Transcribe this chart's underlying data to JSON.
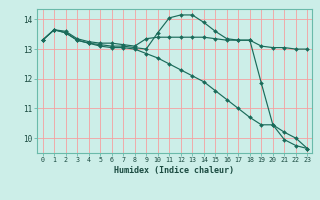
{
  "xlabel": "Humidex (Indice chaleur)",
  "bg_color": "#cceee8",
  "grid_color": "#f5a0a0",
  "line_color": "#1a6b5a",
  "xlim": [
    -0.5,
    23.4
  ],
  "ylim": [
    9.5,
    14.35
  ],
  "yticks": [
    10,
    11,
    12,
    13,
    14
  ],
  "xticks": [
    0,
    1,
    2,
    3,
    4,
    5,
    6,
    7,
    8,
    9,
    10,
    11,
    12,
    13,
    14,
    15,
    16,
    17,
    18,
    19,
    20,
    21,
    22,
    23
  ],
  "lines": [
    {
      "x": [
        0,
        1,
        2,
        3,
        4,
        5,
        6,
        7,
        8,
        9,
        10,
        11,
        12,
        13,
        14,
        15,
        16,
        17,
        18,
        19,
        20,
        21,
        22,
        23
      ],
      "y": [
        13.3,
        13.65,
        13.6,
        13.35,
        13.25,
        13.2,
        13.2,
        13.15,
        13.1,
        13.35,
        13.4,
        13.4,
        13.4,
        13.4,
        13.4,
        13.35,
        13.3,
        13.3,
        13.3,
        13.1,
        13.05,
        13.05,
        13.0,
        13.0
      ]
    },
    {
      "x": [
        0,
        1,
        2,
        3,
        4,
        5,
        6,
        7,
        8,
        9,
        10,
        11,
        12,
        13,
        14,
        15,
        16,
        17,
        18,
        19,
        20,
        21,
        22,
        23
      ],
      "y": [
        13.3,
        13.65,
        13.55,
        13.3,
        13.2,
        13.15,
        13.1,
        13.1,
        13.05,
        13.0,
        13.55,
        14.05,
        14.15,
        14.15,
        13.9,
        13.6,
        13.35,
        13.3,
        13.3,
        11.85,
        10.45,
        9.95,
        9.75,
        9.65
      ]
    },
    {
      "x": [
        0,
        1,
        2,
        3,
        4,
        5,
        6,
        7,
        8,
        9,
        10,
        11,
        12,
        13,
        14,
        15,
        16,
        17,
        18,
        19,
        20,
        21,
        22,
        23
      ],
      "y": [
        13.3,
        13.65,
        13.55,
        13.3,
        13.2,
        13.1,
        13.05,
        13.05,
        13.0,
        12.85,
        12.7,
        12.5,
        12.3,
        12.1,
        11.9,
        11.6,
        11.3,
        11.0,
        10.7,
        10.45,
        10.45,
        10.2,
        10.0,
        9.65
      ]
    }
  ]
}
